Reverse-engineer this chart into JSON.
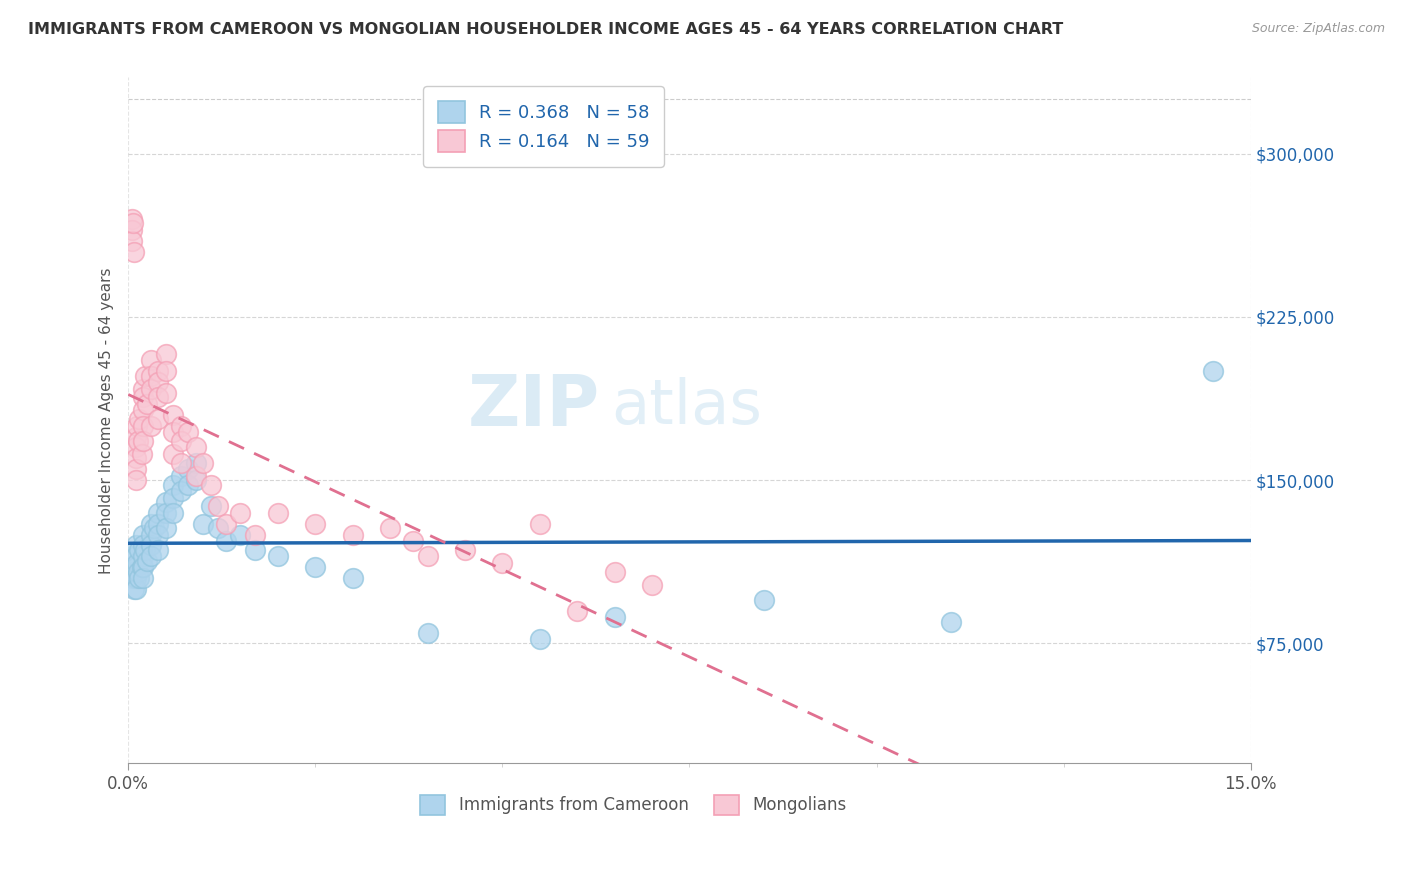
{
  "title": "IMMIGRANTS FROM CAMEROON VS MONGOLIAN HOUSEHOLDER INCOME AGES 45 - 64 YEARS CORRELATION CHART",
  "source": "Source: ZipAtlas.com",
  "ylabel": "Householder Income Ages 45 - 64 years",
  "yticks": [
    75000,
    150000,
    225000,
    300000
  ],
  "ytick_labels": [
    "$75,000",
    "$150,000",
    "$225,000",
    "$300,000"
  ],
  "xmin": 0.0,
  "xmax": 0.15,
  "ymin": 20000,
  "ymax": 335000,
  "legend_R1": "R = 0.368",
  "legend_N1": "N = 58",
  "legend_R2": "R = 0.164",
  "legend_N2": "N = 59",
  "color_blue": "#92c5de",
  "color_pink": "#f4a0b5",
  "color_blue_fill": "#afd4ed",
  "color_pink_fill": "#f8c8d5",
  "color_blue_line": "#2166ac",
  "color_pink_line": "#e07090",
  "watermark_zip": "ZIP",
  "watermark_atlas": "atlas",
  "cameroon_x": [
    0.0005,
    0.0005,
    0.0005,
    0.0007,
    0.0008,
    0.001,
    0.001,
    0.001,
    0.001,
    0.001,
    0.0012,
    0.0013,
    0.0015,
    0.0015,
    0.0018,
    0.002,
    0.002,
    0.002,
    0.002,
    0.002,
    0.0022,
    0.0025,
    0.003,
    0.003,
    0.003,
    0.003,
    0.0035,
    0.004,
    0.004,
    0.004,
    0.004,
    0.005,
    0.005,
    0.005,
    0.006,
    0.006,
    0.006,
    0.007,
    0.007,
    0.008,
    0.008,
    0.009,
    0.009,
    0.01,
    0.011,
    0.012,
    0.013,
    0.015,
    0.017,
    0.02,
    0.025,
    0.03,
    0.04,
    0.055,
    0.065,
    0.085,
    0.11,
    0.145
  ],
  "cameroon_y": [
    115000,
    110000,
    105000,
    108000,
    100000,
    120000,
    115000,
    110000,
    105000,
    100000,
    112000,
    108000,
    118000,
    105000,
    110000,
    125000,
    120000,
    115000,
    110000,
    105000,
    118000,
    113000,
    130000,
    125000,
    120000,
    115000,
    128000,
    135000,
    130000,
    125000,
    118000,
    140000,
    135000,
    128000,
    148000,
    142000,
    135000,
    152000,
    145000,
    155000,
    148000,
    158000,
    150000,
    130000,
    138000,
    128000,
    122000,
    125000,
    118000,
    115000,
    110000,
    105000,
    80000,
    77000,
    87000,
    95000,
    85000,
    200000
  ],
  "mongolian_x": [
    0.0005,
    0.0005,
    0.0005,
    0.0007,
    0.0008,
    0.001,
    0.001,
    0.001,
    0.001,
    0.001,
    0.0012,
    0.0013,
    0.0015,
    0.0018,
    0.002,
    0.002,
    0.002,
    0.002,
    0.002,
    0.0022,
    0.0025,
    0.003,
    0.003,
    0.003,
    0.003,
    0.004,
    0.004,
    0.004,
    0.004,
    0.005,
    0.005,
    0.005,
    0.006,
    0.006,
    0.006,
    0.007,
    0.007,
    0.007,
    0.008,
    0.009,
    0.009,
    0.01,
    0.011,
    0.012,
    0.013,
    0.015,
    0.017,
    0.02,
    0.025,
    0.03,
    0.035,
    0.038,
    0.04,
    0.045,
    0.05,
    0.055,
    0.06,
    0.065,
    0.07
  ],
  "mongolian_y": [
    270000,
    265000,
    260000,
    268000,
    255000,
    170000,
    165000,
    160000,
    155000,
    150000,
    175000,
    168000,
    178000,
    162000,
    192000,
    188000,
    182000,
    175000,
    168000,
    198000,
    185000,
    205000,
    198000,
    192000,
    175000,
    200000,
    195000,
    188000,
    178000,
    208000,
    200000,
    190000,
    180000,
    172000,
    162000,
    175000,
    168000,
    158000,
    172000,
    165000,
    152000,
    158000,
    148000,
    138000,
    130000,
    135000,
    125000,
    135000,
    130000,
    125000,
    128000,
    122000,
    115000,
    118000,
    112000,
    130000,
    90000,
    108000,
    102000
  ]
}
